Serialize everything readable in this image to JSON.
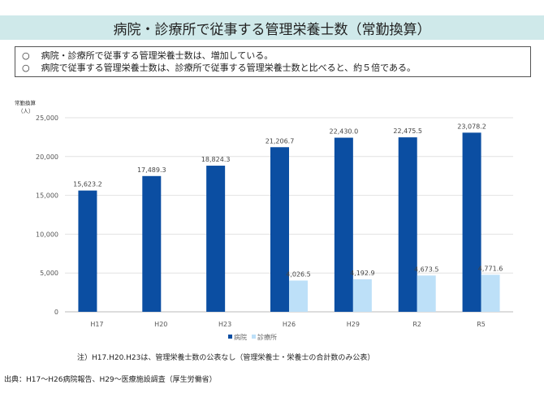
{
  "title": "病院・診療所で従事する管理栄養士数（常勤換算）",
  "summary": {
    "bullet": "○",
    "lines": [
      "病院・診療所で従事する管理栄養士数は、増加している。",
      "病院で従事する管理栄養士数は、診療所で従事する管理栄養士数と比べると、約５倍である。"
    ]
  },
  "chart_data": {
    "type": "bar",
    "ylabel": "常勤換算\n（人）",
    "ylabel_lines": [
      "常勤換算",
      "（人）"
    ],
    "ylim": [
      0,
      25000
    ],
    "yticks": [
      0,
      5000,
      10000,
      15000,
      20000,
      25000
    ],
    "ytick_labels": [
      "0",
      "5,000",
      "10,000",
      "15,000",
      "20,000",
      "25,000"
    ],
    "grid": true,
    "legend": "bottom",
    "categories": [
      "H17",
      "H20",
      "H23",
      "H26",
      "H29",
      "R2",
      "R5"
    ],
    "series": [
      {
        "name": "病院",
        "color": "#0b4ea2",
        "values": [
          15623.2,
          17489.3,
          18824.3,
          21206.7,
          22430.0,
          22475.5,
          23078.2
        ],
        "labels": [
          "15,623.2",
          "17,489.3",
          "18,824.3",
          "21,206.7",
          "22,430.0",
          "22,475.5",
          "23,078.2"
        ]
      },
      {
        "name": "診療所",
        "color": "#bde0f8",
        "values": [
          null,
          null,
          null,
          4026.5,
          4192.9,
          4673.5,
          4771.6
        ],
        "labels": [
          "",
          "",
          "",
          "4,026.5",
          "4,192.9",
          "4,673.5",
          "4,771.6"
        ]
      }
    ]
  },
  "note": "注）H17.H20.H23は、管理栄養士数の公表なし（管理栄養士・栄養士の合計数のみ公表）",
  "source": "出典：H17～H26病院報告、H29～医療施設調査（厚生労働省）"
}
